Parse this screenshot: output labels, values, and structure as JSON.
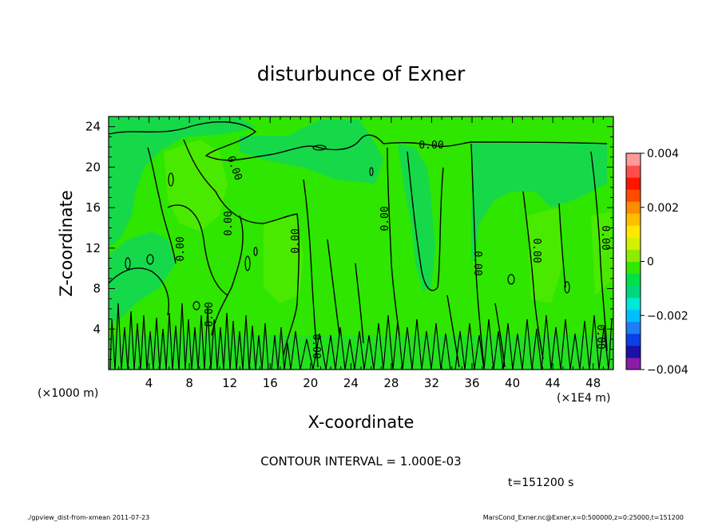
{
  "chart_data": {
    "type": "heatmap",
    "title": "disturbunce of Exner",
    "xlabel": "X-coordinate",
    "ylabel": "Z-coordinate",
    "x_unit": "(×1000 m)",
    "x_unit_right": "(×1E4 m)",
    "xlim": [
      0,
      50
    ],
    "ylim": [
      0,
      25
    ],
    "x_ticks": [
      "4",
      "8",
      "12",
      "16",
      "20",
      "24",
      "28",
      "32",
      "36",
      "40",
      "44",
      "48"
    ],
    "y_ticks": [
      "4",
      "8",
      "12",
      "16",
      "20",
      "24"
    ],
    "colorbar": {
      "ticks": [
        "0.004",
        "0.002",
        "0",
        "−0.002",
        "−0.004"
      ],
      "range": [
        -0.004,
        0.004
      ],
      "colors": [
        "#8a1ca8",
        "#1d10a6",
        "#0b3fe8",
        "#1e7df5",
        "#00bfff",
        "#00e8d8",
        "#00d77a",
        "#00e04a",
        "#33e800",
        "#8cec00",
        "#d2f000",
        "#ffe800",
        "#ffbf00",
        "#ff8c00",
        "#ff4a00",
        "#ff1400",
        "#ff4d4d",
        "#ff9a9a"
      ]
    },
    "contour_labels": [
      "0.00",
      "0.00",
      "0.00",
      "0.00",
      "0.00",
      "0.00",
      "0.00",
      "0.00",
      "0.00",
      "0.00",
      "0.00",
      "0.00"
    ]
  },
  "contour_interval": "CONTOUR INTERVAL = 1.000E-03",
  "time_label": "t=151200 s",
  "footer_left": "./gpview_dist-from-xmean   2011-07-23",
  "footer_right": "MarsCond_Exner.nc@Exner,x=0:500000,z=0:25000,t=151200"
}
